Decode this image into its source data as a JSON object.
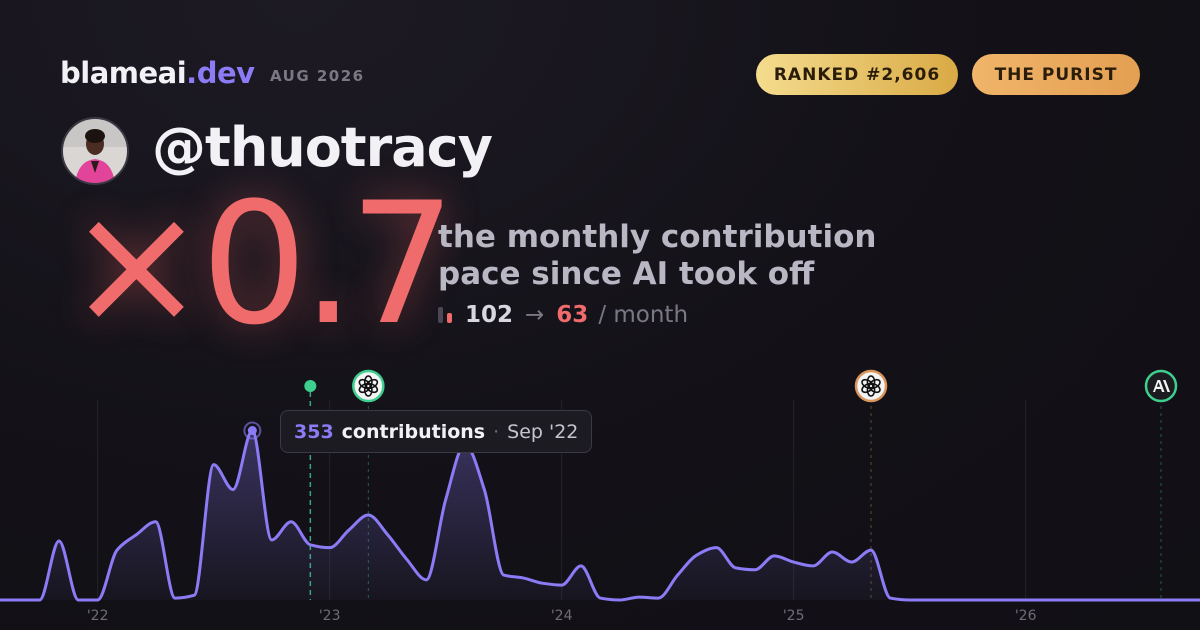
{
  "header": {
    "brand": "blameai",
    "tld": ".dev",
    "period": "AUG 2026"
  },
  "badges": [
    "RANKED #2,606",
    "THE PURIST"
  ],
  "user": {
    "handle": "@thuotracy"
  },
  "headline": {
    "multiplier": "×0.7",
    "caption_lines": [
      "the monthly contribution",
      "pace since AI took off"
    ],
    "before": 102,
    "arrow": "→",
    "after": 63,
    "unit": "/ month"
  },
  "tooltip": {
    "label": "contributions",
    "separator": "·",
    "date": "Sep '22"
  },
  "chart_data": {
    "type": "area",
    "color": "#8b7cf6",
    "x": [
      "2021-08",
      "2021-09",
      "2021-10",
      "2021-11",
      "2021-12",
      "2022-01",
      "2022-02",
      "2022-03",
      "2022-04",
      "2022-05",
      "2022-06",
      "2022-07",
      "2022-08",
      "2022-09",
      "2022-10",
      "2022-11",
      "2022-12",
      "2023-01",
      "2023-02",
      "2023-03",
      "2023-04",
      "2023-05",
      "2023-06",
      "2023-07",
      "2023-08",
      "2023-09",
      "2023-10",
      "2023-11",
      "2023-12",
      "2024-01",
      "2024-02",
      "2024-03",
      "2024-04",
      "2024-05",
      "2024-06",
      "2024-07",
      "2024-08",
      "2024-09",
      "2024-10",
      "2024-11",
      "2024-12",
      "2025-01",
      "2025-02",
      "2025-03",
      "2025-04",
      "2025-05",
      "2025-06",
      "2025-07",
      "2025-08",
      "2025-09",
      "2025-10",
      "2025-11",
      "2025-12",
      "2026-01",
      "2026-02",
      "2026-03",
      "2026-04",
      "2026-05",
      "2026-06",
      "2026-07",
      "2026-08"
    ],
    "values": [
      0,
      0,
      0,
      123,
      0,
      0,
      104,
      136,
      163,
      4,
      10,
      282,
      230,
      353,
      125,
      163,
      115,
      109,
      146,
      177,
      136,
      84,
      42,
      209,
      324,
      230,
      52,
      46,
      35,
      31,
      71,
      4,
      0,
      6,
      4,
      52,
      94,
      109,
      67,
      63,
      92,
      79,
      71,
      100,
      79,
      104,
      4,
      0,
      0,
      0,
      0,
      0,
      0,
      0,
      0,
      0,
      0,
      0,
      0,
      0,
      0
    ],
    "xlim": [
      "2021-08",
      "2026-08"
    ],
    "xticks": [
      {
        "value": "2022-01",
        "label": "'22"
      },
      {
        "value": "2023-01",
        "label": "'23"
      },
      {
        "value": "2024-01",
        "label": "'24"
      },
      {
        "value": "2025-01",
        "label": "'25"
      },
      {
        "value": "2026-01",
        "label": "'26"
      }
    ],
    "ylim": [
      0,
      400
    ],
    "grid": true,
    "events": [
      "2022-12",
      "2023-03",
      "2025-05",
      "2026-08"
    ]
  }
}
